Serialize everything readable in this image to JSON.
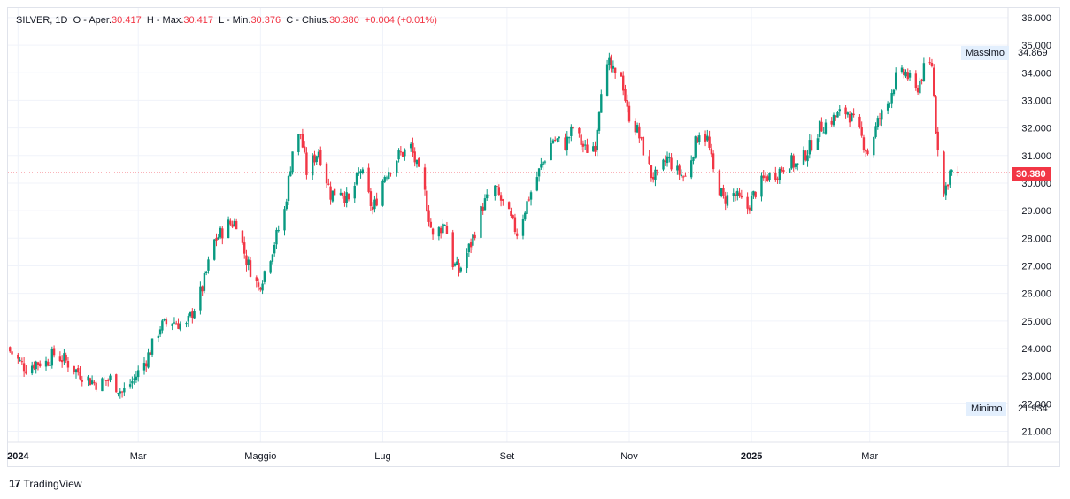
{
  "legend": {
    "symbol": "SILVER, 1D",
    "open_label": "O - Aper.",
    "open_value": "30.417",
    "high_label": "H - Max.",
    "high_value": "30.417",
    "low_label": "L - Min.",
    "low_value": "30.376",
    "close_label": "C - Chius.",
    "close_value": "30.380",
    "change": "+0.004 (+0.01%)"
  },
  "markers": {
    "max_label": "Massimo",
    "max_value": "34.869",
    "min_label": "Minimo",
    "min_value": "21.934",
    "last_price": "30.380"
  },
  "footer": {
    "logo_glyph": "17",
    "brand": "TradingView"
  },
  "colors": {
    "up": "#089981",
    "down": "#f23645",
    "grid": "#f0f3fa",
    "label_bg": "#e3effd"
  },
  "chart_data": {
    "type": "candlestick",
    "symbol": "SILVER",
    "interval": "1D",
    "y_ticks": [
      21,
      22,
      23,
      24,
      25,
      26,
      27,
      28,
      29,
      30,
      31,
      32,
      33,
      34,
      35,
      36
    ],
    "y_tick_labels": [
      "21.000",
      "22.000",
      "23.000",
      "24.000",
      "25.000",
      "26.000",
      "27.000",
      "28.000",
      "29.000",
      "30.000",
      "31.000",
      "32.000",
      "33.000",
      "34.000",
      "35.000",
      "36.000"
    ],
    "ylim": [
      20.6,
      36.35
    ],
    "x_labels": [
      {
        "label": "2024",
        "date": "2024-01-01",
        "bold": true
      },
      {
        "label": "Mar",
        "date": "2024-03-01",
        "bold": false
      },
      {
        "label": "Maggio",
        "date": "2024-05-01",
        "bold": false
      },
      {
        "label": "Lug",
        "date": "2024-07-01",
        "bold": false
      },
      {
        "label": "Set",
        "date": "2024-09-01",
        "bold": false
      },
      {
        "label": "Nov",
        "date": "2024-11-01",
        "bold": false
      },
      {
        "label": "2025",
        "date": "2025-01-01",
        "bold": true
      },
      {
        "label": "Mar",
        "date": "2025-03-01",
        "bold": false
      }
    ],
    "xlim": [
      "2023-12-27",
      "2025-05-09"
    ],
    "last_price": 30.38,
    "max": 34.869,
    "min": 21.934,
    "grid": true,
    "close_path": [
      [
        "2023-12-28",
        23.9
      ],
      [
        "2024-01-02",
        23.5
      ],
      [
        "2024-01-05",
        23.3
      ],
      [
        "2024-01-10",
        23.5
      ],
      [
        "2024-01-15",
        23.5
      ],
      [
        "2024-01-19",
        23.8
      ],
      [
        "2024-01-24",
        23.6
      ],
      [
        "2024-01-30",
        23.2
      ],
      [
        "2024-02-05",
        22.9
      ],
      [
        "2024-02-10",
        22.7
      ],
      [
        "2024-02-16",
        22.9
      ],
      [
        "2024-02-22",
        22.4
      ],
      [
        "2024-02-28",
        22.9
      ],
      [
        "2024-03-05",
        23.6
      ],
      [
        "2024-03-12",
        24.8
      ],
      [
        "2024-03-18",
        25.0
      ],
      [
        "2024-03-25",
        24.8
      ],
      [
        "2024-04-02",
        26.2
      ],
      [
        "2024-04-08",
        27.9
      ],
      [
        "2024-04-15",
        28.5
      ],
      [
        "2024-04-19",
        28.6
      ],
      [
        "2024-04-24",
        27.2
      ],
      [
        "2024-04-30",
        26.2
      ],
      [
        "2024-05-06",
        27.4
      ],
      [
        "2024-05-13",
        29.0
      ],
      [
        "2024-05-17",
        31.2
      ],
      [
        "2024-05-21",
        31.8
      ],
      [
        "2024-05-24",
        30.4
      ],
      [
        "2024-05-30",
        31.2
      ],
      [
        "2024-06-05",
        29.6
      ],
      [
        "2024-06-10",
        29.8
      ],
      [
        "2024-06-14",
        29.3
      ],
      [
        "2024-06-20",
        30.5
      ],
      [
        "2024-06-26",
        29.0
      ],
      [
        "2024-07-02",
        30.3
      ],
      [
        "2024-07-09",
        31.0
      ],
      [
        "2024-07-15",
        31.3
      ],
      [
        "2024-07-22",
        29.6
      ],
      [
        "2024-07-26",
        28.0
      ],
      [
        "2024-08-01",
        28.6
      ],
      [
        "2024-08-05",
        27.1
      ],
      [
        "2024-08-08",
        26.8
      ],
      [
        "2024-08-14",
        27.8
      ],
      [
        "2024-08-20",
        29.2
      ],
      [
        "2024-08-26",
        29.8
      ],
      [
        "2024-09-02",
        28.8
      ],
      [
        "2024-09-06",
        28.2
      ],
      [
        "2024-09-12",
        29.5
      ],
      [
        "2024-09-18",
        30.6
      ],
      [
        "2024-09-24",
        31.6
      ],
      [
        "2024-09-30",
        31.4
      ],
      [
        "2024-10-04",
        32.0
      ],
      [
        "2024-10-10",
        31.2
      ],
      [
        "2024-10-15",
        31.4
      ],
      [
        "2024-10-18",
        33.5
      ],
      [
        "2024-10-22",
        34.3
      ],
      [
        "2024-10-25",
        33.8
      ],
      [
        "2024-10-28",
        34.0
      ],
      [
        "2024-10-31",
        32.6
      ],
      [
        "2024-11-05",
        31.9
      ],
      [
        "2024-11-08",
        31.2
      ],
      [
        "2024-11-12",
        30.3
      ],
      [
        "2024-11-15",
        30.2
      ],
      [
        "2024-11-20",
        30.9
      ],
      [
        "2024-11-25",
        30.4
      ],
      [
        "2024-11-29",
        30.2
      ],
      [
        "2024-12-03",
        31.2
      ],
      [
        "2024-12-06",
        31.9
      ],
      [
        "2024-12-10",
        31.6
      ],
      [
        "2024-12-13",
        30.4
      ],
      [
        "2024-12-18",
        29.4
      ],
      [
        "2024-12-23",
        29.6
      ],
      [
        "2024-12-30",
        29.1
      ],
      [
        "2025-01-03",
        29.7
      ],
      [
        "2025-01-08",
        30.2
      ],
      [
        "2025-01-14",
        30.4
      ],
      [
        "2025-01-20",
        30.8
      ],
      [
        "2025-01-24",
        30.6
      ],
      [
        "2025-01-30",
        31.3
      ],
      [
        "2025-02-04",
        32.0
      ],
      [
        "2025-02-10",
        32.3
      ],
      [
        "2025-02-14",
        32.5
      ],
      [
        "2025-02-18",
        32.6
      ],
      [
        "2025-02-24",
        31.8
      ],
      [
        "2025-02-28",
        31.1
      ],
      [
        "2025-03-05",
        32.2
      ],
      [
        "2025-03-10",
        32.9
      ],
      [
        "2025-03-14",
        33.8
      ],
      [
        "2025-03-19",
        34.0
      ],
      [
        "2025-03-24",
        33.3
      ],
      [
        "2025-03-28",
        34.1
      ],
      [
        "2025-04-01",
        34.3
      ],
      [
        "2025-04-03",
        32.0
      ],
      [
        "2025-04-07",
        29.6
      ],
      [
        "2025-04-10",
        30.4
      ],
      [
        "2025-04-14",
        30.38
      ]
    ]
  }
}
